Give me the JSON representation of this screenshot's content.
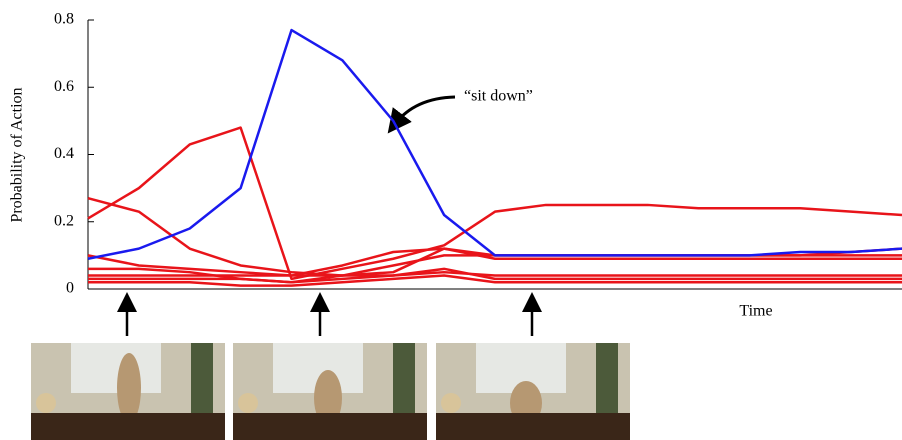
{
  "chart_data": {
    "type": "line",
    "y_label": "Probability of Action",
    "x_label": "Time",
    "annotation": "“sit down”",
    "categories": [
      null,
      null,
      null,
      null,
      null,
      null,
      null,
      null,
      null,
      null,
      null,
      null,
      null,
      null,
      null,
      null,
      null
    ],
    "ylim": [
      0,
      0.8
    ],
    "yticks": [
      0,
      0.2,
      0.4,
      0.6,
      0.8
    ],
    "series": [
      {
        "color": "#e8141a",
        "values": [
          0.21,
          0.3,
          0.43,
          0.48,
          0.03,
          0.06,
          0.09,
          0.13,
          0.23,
          0.25,
          0.25,
          0.25,
          0.24,
          0.24,
          0.24,
          0.23,
          0.22
        ]
      },
      {
        "color": "#e8141a",
        "values": [
          0.27,
          0.23,
          0.12,
          0.07,
          0.05,
          0.04,
          0.05,
          0.12,
          0.1,
          0.1,
          0.1,
          0.1,
          0.1,
          0.1,
          0.1,
          0.11,
          0.12
        ]
      },
      {
        "color": "#e8141a",
        "values": [
          0.1,
          0.07,
          0.06,
          0.05,
          0.04,
          0.07,
          0.11,
          0.12,
          0.09,
          0.09,
          0.09,
          0.09,
          0.09,
          0.09,
          0.09,
          0.09,
          0.09
        ]
      },
      {
        "color": "#e8141a",
        "values": [
          0.06,
          0.06,
          0.05,
          0.03,
          0.02,
          0.04,
          0.07,
          0.1,
          0.1,
          0.1,
          0.1,
          0.1,
          0.1,
          0.1,
          0.1,
          0.1,
          0.1
        ]
      },
      {
        "color": "#e8141a",
        "values": [
          0.04,
          0.04,
          0.04,
          0.04,
          0.04,
          0.04,
          0.04,
          0.05,
          0.04,
          0.04,
          0.04,
          0.04,
          0.04,
          0.04,
          0.04,
          0.04,
          0.04
        ]
      },
      {
        "color": "#e8141a",
        "values": [
          0.03,
          0.03,
          0.03,
          0.03,
          0.02,
          0.03,
          0.04,
          0.06,
          0.03,
          0.03,
          0.03,
          0.03,
          0.03,
          0.03,
          0.03,
          0.03,
          0.03
        ]
      },
      {
        "color": "#e8141a",
        "values": [
          0.02,
          0.02,
          0.02,
          0.01,
          0.01,
          0.02,
          0.03,
          0.04,
          0.02,
          0.02,
          0.02,
          0.02,
          0.02,
          0.02,
          0.02,
          0.02,
          0.02
        ]
      },
      {
        "color": "#1a1aee",
        "values": [
          0.09,
          0.12,
          0.18,
          0.3,
          0.77,
          0.68,
          0.5,
          0.22,
          0.1,
          0.1,
          0.1,
          0.1,
          0.1,
          0.1,
          0.11,
          0.11,
          0.12
        ]
      }
    ]
  }
}
